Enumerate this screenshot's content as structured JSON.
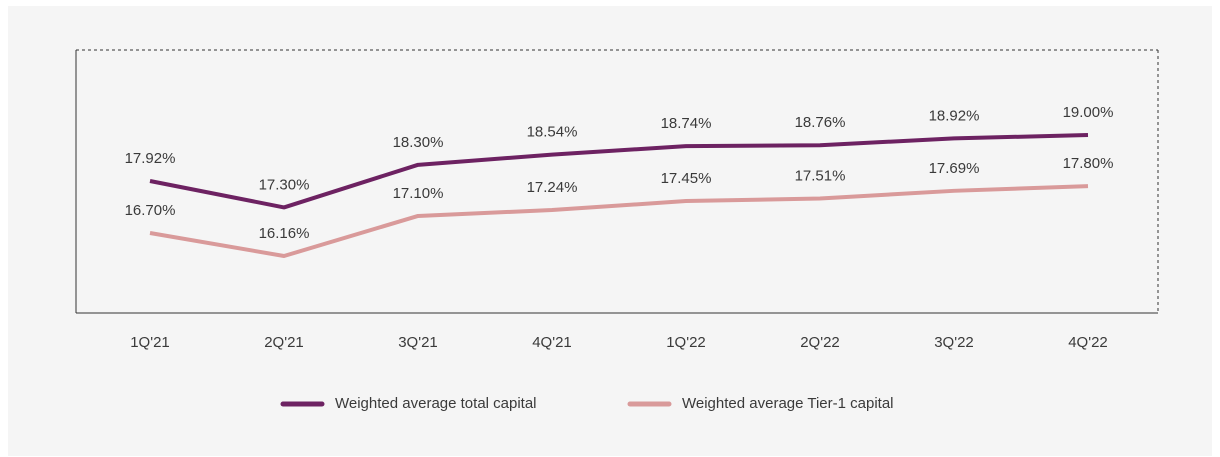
{
  "chart_data": {
    "type": "line",
    "categories": [
      "1Q'21",
      "2Q'21",
      "3Q'21",
      "4Q'21",
      "1Q'22",
      "2Q'22",
      "3Q'22",
      "4Q'22"
    ],
    "series": [
      {
        "name": "Weighted average total capital",
        "color": "#6d2262",
        "values": [
          17.92,
          17.3,
          18.3,
          18.54,
          18.74,
          18.76,
          18.92,
          19.0
        ],
        "value_labels": [
          "17.92%",
          "17.30%",
          "18.30%",
          "18.54%",
          "18.74%",
          "18.76%",
          "18.92%",
          "19.00%"
        ]
      },
      {
        "name": "Weighted average Tier-1 capital",
        "color": "#d99a9a",
        "values": [
          16.7,
          16.16,
          17.1,
          17.24,
          17.45,
          17.51,
          17.69,
          17.8
        ],
        "value_labels": [
          "16.70%",
          "16.16%",
          "17.10%",
          "17.24%",
          "17.45%",
          "17.51%",
          "17.69%",
          "17.80%"
        ]
      }
    ],
    "legend": "bottom"
  }
}
